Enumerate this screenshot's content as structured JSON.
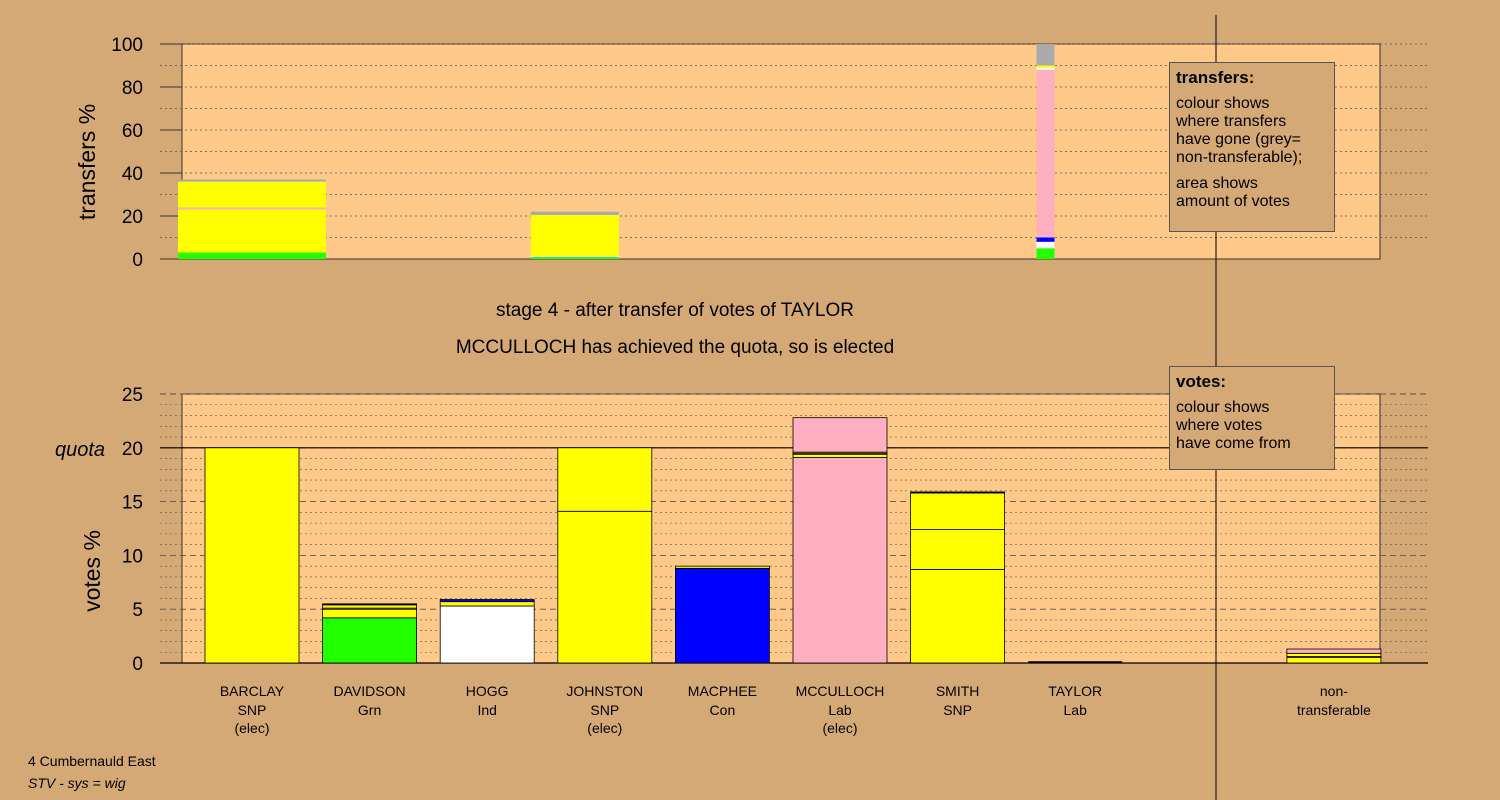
{
  "stage": {
    "line1": "stage 4 - after transfer of votes of TAYLOR",
    "line2": "MCCULLOCH has achieved the quota, so is elected"
  },
  "footer": {
    "ward": "4 Cumbernauld East",
    "system": "STV - sys = wig"
  },
  "legend_transfers": {
    "title": "transfers:",
    "lines_a": [
      "colour shows",
      "where transfers",
      "have gone (grey=",
      "non-transferable);"
    ],
    "lines_b": [
      "area shows",
      "amount of votes"
    ]
  },
  "legend_votes": {
    "title": "votes:",
    "lines": [
      "colour shows",
      "where votes",
      "have come from"
    ]
  },
  "colors": {
    "background": "#d4a975",
    "plot": "#ffc98a",
    "SNP": "#ffff00",
    "Grn": "#22ff00",
    "Ind": "#ffffff",
    "Con": "#0000ff",
    "Lab": "#ffb0c0",
    "nontransferable": "#aaaaaa"
  },
  "chart_data": [
    {
      "type": "bar",
      "name": "transfers",
      "ylabel": "transfers %",
      "ylim": [
        0,
        100
      ],
      "yticks": [
        0,
        20,
        40,
        60,
        80,
        100
      ],
      "bars": [
        {
          "slot": 0,
          "width": 37,
          "segments": [
            {
              "party": "Grn",
              "value": 3
            },
            {
              "party": "SNP",
              "value": 20
            },
            {
              "party": "Lab",
              "value": 1
            },
            {
              "party": "SNP",
              "value": 12
            },
            {
              "party": "nontransferable",
              "value": 1
            }
          ]
        },
        {
          "slot": 3,
          "width": 22,
          "segments": [
            {
              "party": "Grn",
              "value": 1
            },
            {
              "party": "Ind",
              "value": 0.5
            },
            {
              "party": "SNP",
              "value": 19
            },
            {
              "party": "nontransferable",
              "value": 1.5
            }
          ]
        },
        {
          "slot": 7.3,
          "width": 4.5,
          "segments": [
            {
              "party": "Grn",
              "value": 5
            },
            {
              "party": "Ind",
              "value": 3
            },
            {
              "party": "Con",
              "value": 2
            },
            {
              "party": "Lab",
              "value": 78
            },
            {
              "party": "Ind",
              "value": 1
            },
            {
              "party": "SNP",
              "value": 1
            },
            {
              "party": "nontransferable",
              "value": 10
            }
          ]
        }
      ]
    },
    {
      "type": "bar",
      "name": "votes",
      "ylabel": "votes %",
      "ylim": [
        0,
        25
      ],
      "yticks": [
        0,
        5,
        10,
        15,
        20,
        25
      ],
      "quota": 20,
      "quota_label": "quota",
      "categories": [
        {
          "name": "BARCLAY",
          "party": "SNP",
          "note": "(elec)",
          "segments": [
            {
              "party": "SNP",
              "value": 20
            }
          ]
        },
        {
          "name": "DAVIDSON",
          "party": "Grn",
          "note": "",
          "segments": [
            {
              "party": "Grn",
              "value": 4.2
            },
            {
              "party": "SNP",
              "value": 0.8
            },
            {
              "party": "Lab",
              "value": 0.1
            },
            {
              "party": "SNP",
              "value": 0.3
            },
            {
              "party": "Con",
              "value": 0.1
            }
          ]
        },
        {
          "name": "HOGG",
          "party": "Ind",
          "note": "",
          "segments": [
            {
              "party": "Ind",
              "value": 5.3
            },
            {
              "party": "SNP",
              "value": 0.4
            },
            {
              "party": "Con",
              "value": 0.2
            }
          ]
        },
        {
          "name": "JOHNSTON",
          "party": "SNP",
          "note": "(elec)",
          "segments": [
            {
              "party": "SNP",
              "value": 14.1
            },
            {
              "party": "SNP",
              "value": 5.9
            }
          ]
        },
        {
          "name": "MACPHEE",
          "party": "Con",
          "note": "",
          "segments": [
            {
              "party": "Con",
              "value": 8.8
            },
            {
              "party": "SNP",
              "value": 0.2
            }
          ]
        },
        {
          "name": "MCCULLOCH",
          "party": "Lab",
          "note": "(elec)",
          "segments": [
            {
              "party": "Lab",
              "value": 19.1
            },
            {
              "party": "SNP",
              "value": 0.3
            },
            {
              "party": "Lab",
              "value": 0.1
            },
            {
              "party": "SNP",
              "value": 0.1
            },
            {
              "party": "Lab",
              "value": 3.2
            }
          ]
        },
        {
          "name": "SMITH",
          "party": "SNP",
          "note": "",
          "segments": [
            {
              "party": "SNP",
              "value": 8.7
            },
            {
              "party": "SNP",
              "value": 3.7
            },
            {
              "party": "SNP",
              "value": 3.4
            },
            {
              "party": "Con",
              "value": 0.1
            }
          ]
        },
        {
          "name": "TAYLOR",
          "party": "Lab",
          "note": "",
          "segments": []
        },
        {
          "name": "non-",
          "party": "transferable",
          "note": "",
          "segments": [
            {
              "party": "SNP",
              "value": 0.5
            },
            {
              "party": "Lab",
              "value": 0.1
            },
            {
              "party": "SNP",
              "value": 0.3
            },
            {
              "party": "Lab",
              "value": 0.4
            }
          ]
        }
      ]
    }
  ]
}
